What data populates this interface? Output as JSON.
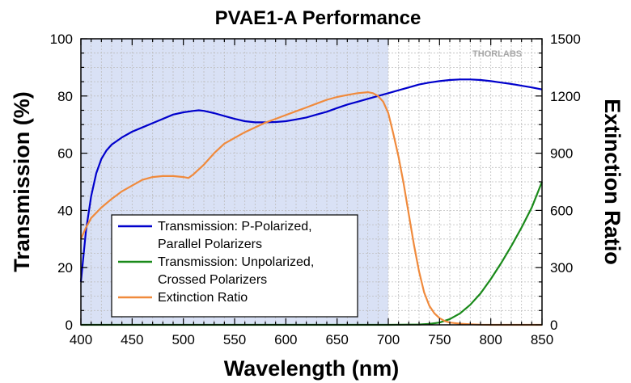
{
  "chart_data": {
    "type": "line",
    "title": "PVAE1-A Performance",
    "xlabel": "Wavelength (nm)",
    "ylabel": "Transmission (%)",
    "y2label": "Extinction Ratio",
    "logo": "THORLABS",
    "xlim": [
      400,
      850
    ],
    "ylim": [
      0,
      100
    ],
    "y2lim": [
      0,
      1500
    ],
    "xticks": [
      400,
      450,
      500,
      550,
      600,
      650,
      700,
      750,
      800,
      850
    ],
    "yticks": [
      0,
      20,
      40,
      60,
      80,
      100
    ],
    "y2ticks": [
      0,
      300,
      600,
      900,
      1200,
      1500
    ],
    "grid": true,
    "shaded_region": {
      "x": [
        400,
        700
      ],
      "color": "#d9e1f5"
    },
    "legend_position": "bottom-left",
    "series": [
      {
        "name": "Transmission: P-Polarized, Parallel Polarizers",
        "legend_lines": [
          "Transmission: P-Polarized,",
          "Parallel Polarizers"
        ],
        "axis": "left",
        "color": "#0000cc",
        "x": [
          400,
          405,
          410,
          415,
          420,
          425,
          430,
          440,
          450,
          460,
          470,
          480,
          490,
          500,
          510,
          515,
          520,
          530,
          540,
          550,
          560,
          570,
          580,
          590,
          600,
          610,
          620,
          630,
          640,
          650,
          660,
          670,
          680,
          690,
          700,
          710,
          720,
          730,
          740,
          750,
          760,
          770,
          780,
          790,
          800,
          810,
          820,
          830,
          840,
          850
        ],
        "y": [
          15,
          33,
          45,
          53,
          58,
          61,
          63,
          65.5,
          67.5,
          69,
          70.5,
          72,
          73.5,
          74.3,
          74.8,
          75,
          74.8,
          74,
          73,
          72,
          71.2,
          70.8,
          70.8,
          70.9,
          71.2,
          71.8,
          72.5,
          73.5,
          74.5,
          75.8,
          77,
          78,
          79,
          80,
          81,
          82,
          83,
          84,
          84.7,
          85.2,
          85.6,
          85.8,
          85.8,
          85.6,
          85.2,
          84.7,
          84.2,
          83.6,
          83,
          82.3
        ]
      },
      {
        "name": "Transmission: Unpolarized, Crossed Polarizers",
        "legend_lines": [
          "Transmission: Unpolarized,",
          "Crossed Polarizers"
        ],
        "axis": "left",
        "color": "#1a8a1a",
        "x": [
          400,
          700,
          730,
          740,
          750,
          760,
          770,
          780,
          790,
          800,
          810,
          820,
          830,
          840,
          850
        ],
        "y": [
          0,
          0,
          0.1,
          0.3,
          0.8,
          2,
          4,
          7,
          11,
          16,
          21.5,
          27.5,
          34,
          41,
          50
        ]
      },
      {
        "name": "Extinction Ratio",
        "legend_lines": [
          "Extinction Ratio"
        ],
        "axis": "right",
        "color": "#f08a3c",
        "x": [
          400,
          405,
          410,
          420,
          430,
          440,
          450,
          460,
          470,
          480,
          490,
          500,
          505,
          510,
          520,
          530,
          540,
          550,
          560,
          570,
          580,
          590,
          600,
          610,
          620,
          630,
          640,
          650,
          660,
          670,
          680,
          685,
          690,
          695,
          700,
          705,
          710,
          715,
          720,
          725,
          730,
          735,
          740,
          745,
          750,
          755,
          760,
          770,
          780,
          790,
          800,
          820,
          850
        ],
        "y": [
          450,
          510,
          560,
          615,
          660,
          700,
          730,
          760,
          775,
          780,
          780,
          775,
          770,
          790,
          840,
          900,
          950,
          980,
          1010,
          1035,
          1060,
          1080,
          1100,
          1120,
          1140,
          1160,
          1180,
          1195,
          1205,
          1215,
          1220,
          1215,
          1200,
          1170,
          1110,
          1000,
          880,
          740,
          580,
          420,
          280,
          170,
          100,
          60,
          35,
          20,
          12,
          6,
          3,
          1,
          0,
          0,
          0
        ]
      }
    ]
  }
}
